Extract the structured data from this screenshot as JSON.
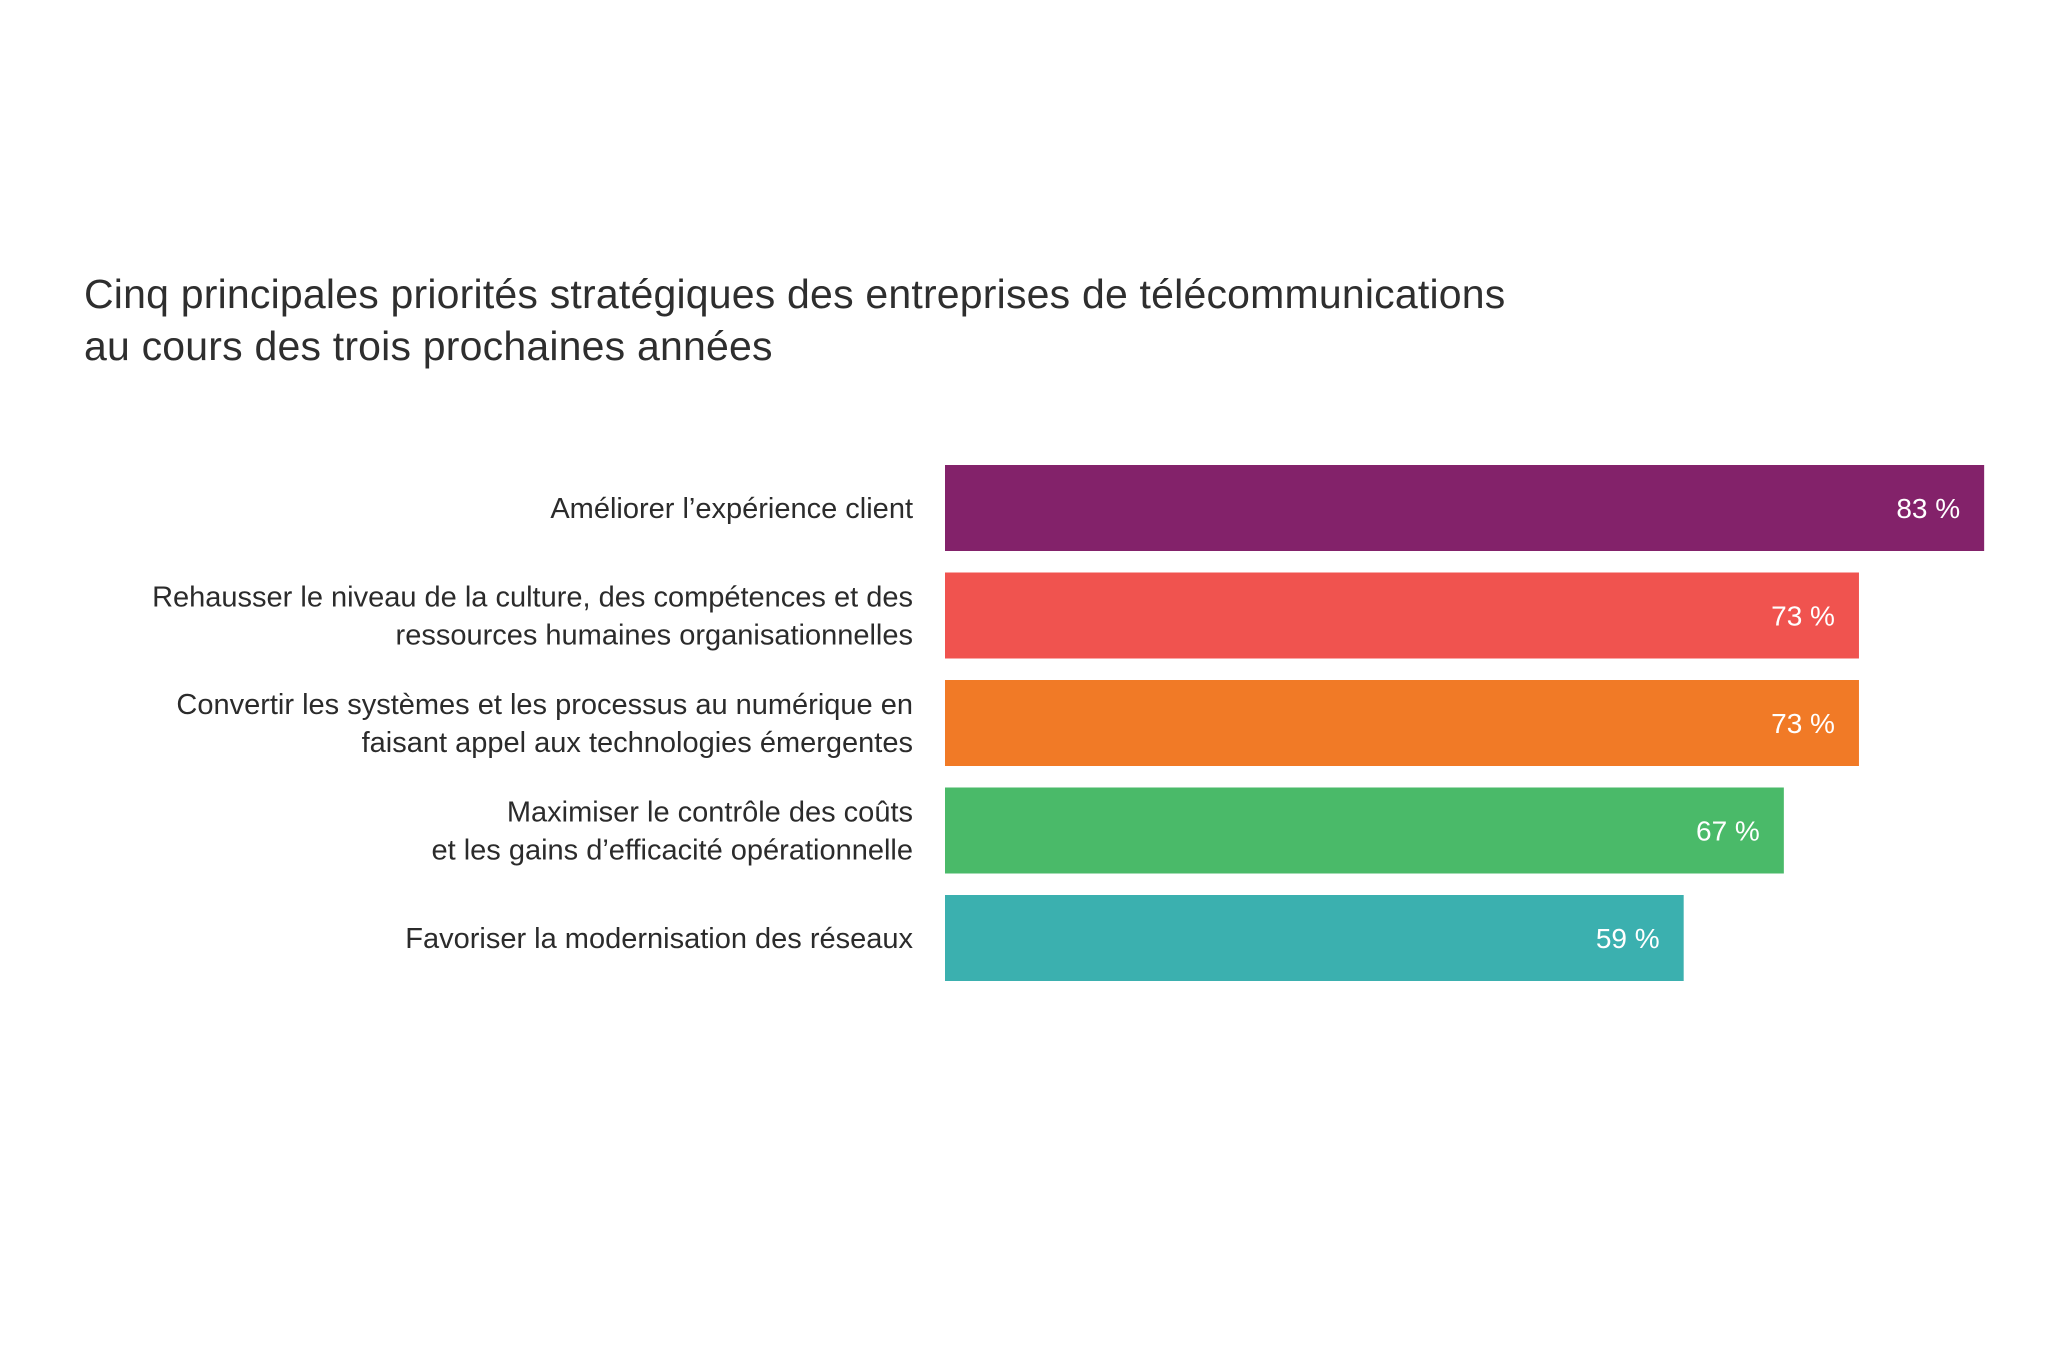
{
  "chart_data": {
    "type": "bar",
    "orientation": "horizontal",
    "title": [
      "Cinq principales priorités stratégiques des entreprises de télécommunications",
      "au cours des trois prochaines années"
    ],
    "categories": [
      [
        "Améliorer l’expérience client"
      ],
      [
        "Rehausser le niveau de la culture, des compétences et des",
        "ressources humaines organisationnelles"
      ],
      [
        "Convertir les systèmes et les processus au numérique en",
        "faisant appel aux technologies émergentes"
      ],
      [
        "Maximiser le contrôle des coûts",
        "et les gains d’efficacité opérationnelle"
      ],
      [
        "Favoriser la modernisation des réseaux"
      ]
    ],
    "values": [
      83,
      73,
      73,
      67,
      59
    ],
    "value_labels": [
      "83 %",
      "73 %",
      "73 %",
      "67 %",
      "59 %"
    ],
    "colors": [
      "#83226a",
      "#f0534f",
      "#f17a26",
      "#4aba69",
      "#3bb0af"
    ],
    "xlim": [
      0,
      100
    ],
    "grid": false,
    "xlabel": "",
    "ylabel": ""
  }
}
